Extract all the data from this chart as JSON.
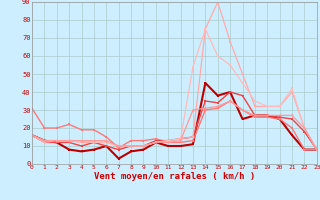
{
  "xlabel": "Vent moyen/en rafales ( km/h )",
  "xlim": [
    0,
    23
  ],
  "ylim": [
    0,
    90
  ],
  "yticks": [
    0,
    10,
    20,
    30,
    40,
    50,
    60,
    70,
    80,
    90
  ],
  "xticks": [
    0,
    1,
    2,
    3,
    4,
    5,
    6,
    7,
    8,
    9,
    10,
    11,
    12,
    13,
    14,
    15,
    16,
    17,
    18,
    19,
    20,
    21,
    22,
    23
  ],
  "bg_color": "#cceeff",
  "grid_color": "#aacccc",
  "series": [
    {
      "x": [
        0,
        1,
        2,
        3,
        4,
        5,
        6,
        7,
        8,
        9,
        10,
        11,
        12,
        13,
        14,
        15,
        16,
        17,
        18,
        19,
        20,
        21,
        22,
        23
      ],
      "y": [
        16,
        13,
        12,
        8,
        7,
        8,
        10,
        3,
        7,
        8,
        12,
        10,
        10,
        11,
        45,
        38,
        40,
        25,
        27,
        27,
        25,
        16,
        8,
        8
      ],
      "color": "#bb0000",
      "lw": 1.5,
      "marker": "s",
      "ms": 1.8
    },
    {
      "x": [
        0,
        1,
        2,
        3,
        4,
        5,
        6,
        7,
        8,
        9,
        10,
        11,
        12,
        13,
        14,
        15,
        16,
        17,
        18,
        19,
        20,
        21,
        22,
        23
      ],
      "y": [
        31,
        20,
        20,
        22,
        19,
        19,
        15,
        9,
        13,
        13,
        14,
        12,
        12,
        13,
        30,
        31,
        35,
        30,
        26,
        26,
        25,
        20,
        8,
        8
      ],
      "color": "#ff7777",
      "lw": 1.0,
      "marker": "s",
      "ms": 1.5
    },
    {
      "x": [
        0,
        1,
        2,
        3,
        4,
        5,
        6,
        7,
        8,
        9,
        10,
        11,
        12,
        13,
        14,
        15,
        16,
        17,
        18,
        19,
        20,
        21,
        22,
        23
      ],
      "y": [
        16,
        12,
        12,
        12,
        10,
        12,
        10,
        8,
        10,
        10,
        13,
        13,
        14,
        15,
        35,
        34,
        40,
        38,
        27,
        27,
        26,
        25,
        18,
        8
      ],
      "color": "#ee4444",
      "lw": 1.0,
      "marker": "s",
      "ms": 1.5
    },
    {
      "x": [
        0,
        1,
        2,
        3,
        4,
        5,
        6,
        7,
        8,
        9,
        10,
        11,
        12,
        13,
        14,
        15,
        16,
        17,
        18,
        19,
        20,
        21,
        22,
        23
      ],
      "y": [
        16,
        13,
        13,
        13,
        12,
        12,
        12,
        10,
        10,
        10,
        12,
        13,
        14,
        15,
        75,
        90,
        68,
        50,
        32,
        32,
        32,
        40,
        20,
        8
      ],
      "color": "#ffaaaa",
      "lw": 0.9,
      "marker": "s",
      "ms": 1.5
    },
    {
      "x": [
        0,
        1,
        2,
        3,
        4,
        5,
        6,
        7,
        8,
        9,
        10,
        11,
        12,
        13,
        14,
        15,
        16,
        17,
        18,
        19,
        20,
        21,
        22,
        23
      ],
      "y": [
        16,
        12,
        13,
        13,
        13,
        12,
        12,
        10,
        10,
        10,
        12,
        13,
        14,
        54,
        75,
        60,
        55,
        45,
        35,
        32,
        32,
        42,
        20,
        8
      ],
      "color": "#ffbbbb",
      "lw": 0.9,
      "marker": "s",
      "ms": 1.5
    },
    {
      "x": [
        0,
        1,
        2,
        3,
        4,
        5,
        6,
        7,
        8,
        9,
        10,
        11,
        12,
        13,
        14,
        15,
        16,
        17,
        18,
        19,
        20,
        21,
        22,
        23
      ],
      "y": [
        16,
        13,
        13,
        13,
        13,
        13,
        13,
        10,
        10,
        10,
        12,
        12,
        13,
        30,
        31,
        32,
        35,
        30,
        27,
        27,
        27,
        27,
        20,
        8
      ],
      "color": "#ff9999",
      "lw": 0.9,
      "marker": "s",
      "ms": 1.4
    }
  ],
  "tick_color": "#cc0000",
  "tick_fontsize": 4.5,
  "xlabel_fontsize": 6.5,
  "xlabel_color": "#cc0000"
}
